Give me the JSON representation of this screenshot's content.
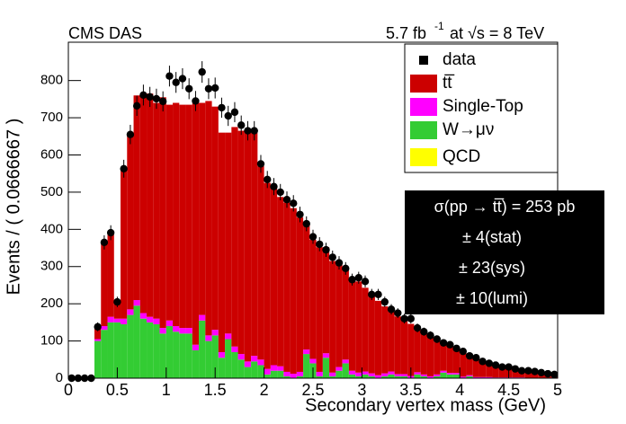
{
  "chart_data": {
    "type": "histogram",
    "stacked": true,
    "top_left_label": "CMS DAS",
    "lumi_label": [
      "5.7 fb",
      "-1",
      "at  √s = 8 TeV"
    ],
    "xlabel": "Secondary vertex mass (GeV)",
    "ylabel": "Events / ( 0.0666667 )",
    "xlim": [
      0,
      5
    ],
    "ylim": [
      0,
      903
    ],
    "xticks": [
      0,
      0.5,
      1,
      1.5,
      2,
      2.5,
      3,
      3.5,
      4,
      4.5,
      5
    ],
    "yticks": [
      0,
      100,
      200,
      300,
      400,
      500,
      600,
      700,
      800
    ],
    "bins": [
      0,
      0.0667,
      0.1333,
      0.2,
      0.2667,
      0.3333,
      0.4,
      0.4667,
      0.5333,
      0.6,
      0.6667,
      0.7333,
      0.8,
      0.8667,
      0.9333,
      1,
      1.0667,
      1.1333,
      1.2,
      1.2667,
      1.3333,
      1.4,
      1.4667,
      1.5333,
      1.6,
      1.6667,
      1.7333,
      1.8,
      1.8667,
      1.9333,
      2,
      2.0667,
      2.1333,
      2.2,
      2.2667,
      2.3333,
      2.4,
      2.4667,
      2.5333,
      2.6,
      2.6667,
      2.7333,
      2.8,
      2.8667,
      2.9333,
      3,
      3.0667,
      3.1333,
      3.2,
      3.2667,
      3.3333,
      3.4,
      3.4667,
      3.5333,
      3.6,
      3.6667,
      3.7333,
      3.8,
      3.8667,
      3.9333,
      4,
      4.0667,
      4.1333,
      4.2,
      4.2667,
      4.3333,
      4.4,
      4.4667,
      4.5333,
      4.6,
      4.6667,
      4.7333,
      4.8,
      4.8667,
      4.9333,
      5
    ],
    "data": {
      "name": "data",
      "color": "#000000",
      "values": [
        0,
        0,
        0,
        0,
        138,
        365,
        391,
        205,
        563,
        655,
        732,
        761,
        756,
        751,
        744,
        812,
        795,
        805,
        778,
        745,
        823,
        778,
        780,
        727,
        705,
        715,
        680,
        665,
        665,
        576,
        534,
        515,
        500,
        480,
        470,
        440,
        415,
        380,
        360,
        345,
        325,
        310,
        295,
        265,
        270,
        260,
        225,
        225,
        205,
        185,
        175,
        160,
        160,
        135,
        125,
        115,
        105,
        95,
        90,
        80,
        72,
        60,
        55,
        45,
        40,
        35,
        30,
        30,
        25,
        20,
        20,
        18,
        15,
        12,
        10
      ],
      "errors": [
        0,
        0,
        0,
        0,
        12,
        19,
        20,
        14,
        24,
        26,
        27,
        28,
        27,
        27,
        27,
        28,
        28,
        28,
        28,
        27,
        29,
        28,
        28,
        27,
        27,
        27,
        26,
        26,
        26,
        24,
        23,
        23,
        22,
        22,
        22,
        21,
        20,
        19,
        19,
        19,
        18,
        18,
        17,
        16,
        16,
        16,
        15,
        15,
        14,
        14,
        13,
        13,
        13,
        12,
        11,
        11,
        10,
        10,
        9,
        9,
        8,
        8,
        7,
        7,
        6,
        6,
        5,
        5,
        5,
        4,
        4,
        4,
        4,
        3,
        3
      ]
    },
    "series": [
      {
        "name": "tt̅",
        "color": "#cc0000",
        "values": [
          0,
          0,
          0,
          0,
          35,
          225,
          226,
          45,
          403,
          470,
          550,
          590,
          600,
          580,
          620,
          580,
          600,
          600,
          600,
          660,
          570,
          630,
          600,
          590,
          540,
          590,
          600,
          615,
          605,
          520,
          500,
          475,
          455,
          455,
          445,
          415,
          340,
          320,
          335,
          285,
          300,
          275,
          245,
          250,
          245,
          225,
          210,
          200,
          180,
          165,
          155,
          145,
          140,
          115,
          110,
          105,
          90,
          75,
          72,
          62,
          65,
          50,
          48,
          40,
          35,
          32,
          26,
          26,
          22,
          18,
          17,
          15,
          12,
          10,
          8
        ]
      },
      {
        "name": "Single-Top",
        "color": "#ff00ff",
        "values": [
          0,
          0,
          0,
          0,
          5,
          10,
          15,
          10,
          15,
          15,
          15,
          15,
          15,
          15,
          15,
          15,
          15,
          15,
          15,
          15,
          15,
          15,
          15,
          15,
          15,
          15,
          15,
          15,
          15,
          15,
          15,
          15,
          12,
          12,
          12,
          12,
          12,
          12,
          12,
          12,
          10,
          10,
          10,
          10,
          10,
          8,
          8,
          8,
          8,
          8,
          6,
          6,
          6,
          6,
          5,
          5,
          5,
          5,
          4,
          4,
          4,
          3,
          3,
          3,
          3,
          2,
          2,
          2,
          2,
          2,
          1,
          1,
          1,
          1,
          1
        ]
      },
      {
        "name": "W→μν",
        "color": "#33cc33",
        "values": [
          0,
          0,
          0,
          0,
          100,
          130,
          150,
          150,
          145,
          170,
          195,
          160,
          150,
          145,
          120,
          140,
          125,
          120,
          120,
          75,
          155,
          100,
          115,
          55,
          105,
          70,
          50,
          30,
          45,
          35,
          10,
          20,
          20,
          5,
          0,
          5,
          65,
          40,
          5,
          55,
          5,
          20,
          40,
          10,
          5,
          10,
          5,
          0,
          5,
          10,
          5,
          5,
          0,
          10,
          5,
          0,
          5,
          15,
          10,
          10,
          0,
          5,
          0,
          0,
          0,
          0,
          0,
          0,
          0,
          0,
          0,
          0,
          0,
          0,
          0
        ]
      },
      {
        "name": "QCD",
        "color": "#ffff00",
        "values": [
          0,
          0,
          0,
          0,
          0,
          0,
          0,
          0,
          0,
          0,
          0,
          0,
          0,
          0,
          0,
          0,
          0,
          0,
          0,
          0,
          0,
          0,
          0,
          0,
          0,
          0,
          0,
          0,
          0,
          0,
          0,
          0,
          0,
          0,
          0,
          0,
          0,
          0,
          0,
          0,
          0,
          0,
          0,
          0,
          0,
          0,
          0,
          0,
          0,
          0,
          0,
          0,
          0,
          0,
          0,
          0,
          0,
          0,
          0,
          0,
          0,
          0,
          0,
          0,
          0,
          0,
          0,
          0,
          0,
          0,
          0,
          0,
          0,
          0,
          0
        ]
      }
    ],
    "result_box": [
      "σ(pp → tt̅) =  253 pb",
      "±  4(stat)",
      "± 23(sys)",
      "± 10(lumi)"
    ]
  }
}
